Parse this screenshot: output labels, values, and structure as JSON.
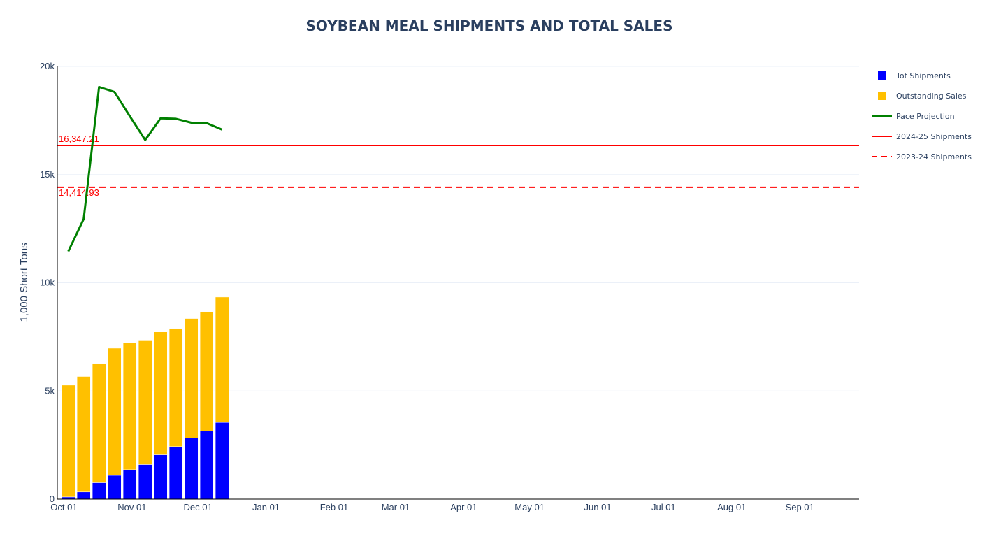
{
  "chart_data": {
    "type": "bar",
    "title": "SOYBEAN MEAL SHIPMENTS AND TOTAL SALES",
    "xlabel": "",
    "ylabel": "1,000 Short Tons",
    "barmode": "stack",
    "xlim": [
      "2024-09-28",
      "2025-09-28"
    ],
    "ylim": [
      0,
      20000
    ],
    "x_tick_labels": [
      "Oct 01",
      "Nov 01",
      "Dec 01",
      "Jan 01",
      "Feb 01",
      "Mar 01",
      "Apr 01",
      "May 01",
      "Jun 01",
      "Jul 01",
      "Aug 01",
      "Sep 01"
    ],
    "x_tick_dates": [
      "2024-10-01",
      "2024-11-01",
      "2024-12-01",
      "2025-01-01",
      "2025-02-01",
      "2025-03-01",
      "2025-04-01",
      "2025-05-01",
      "2025-06-01",
      "2025-07-01",
      "2025-08-01",
      "2025-09-01"
    ],
    "y_tick_labels": [
      "0",
      "5k",
      "10k",
      "15k",
      "20k"
    ],
    "y_ticks": [
      0,
      5000,
      10000,
      15000,
      20000
    ],
    "grid": true,
    "legend_position": "right",
    "dates": [
      "2024-10-03",
      "2024-10-10",
      "2024-10-17",
      "2024-10-24",
      "2024-10-31",
      "2024-11-07",
      "2024-11-14",
      "2024-11-21",
      "2024-11-28",
      "2024-12-05",
      "2024-12-12"
    ],
    "series": [
      {
        "name": "Tot Shipments",
        "kind": "bar",
        "color": "#0000ff",
        "values": [
          100,
          330,
          760,
          1100,
          1360,
          1600,
          2050,
          2430,
          2820,
          3150,
          3550
        ]
      },
      {
        "name": "Outstanding Sales",
        "kind": "bar",
        "color": "#ffc000",
        "values": [
          5170,
          5340,
          5510,
          5880,
          5860,
          5720,
          5680,
          5460,
          5530,
          5510,
          5790
        ]
      },
      {
        "name": "Pace Projection",
        "kind": "line",
        "color": "#008000",
        "values": [
          11450,
          12950,
          19050,
          18820,
          17700,
          16600,
          17600,
          17580,
          17400,
          17380,
          17080
        ]
      }
    ],
    "reference_lines": [
      {
        "name": "2024-25 Shipments",
        "value": 16347.21,
        "label": "16,347.21",
        "color": "#ff0000",
        "dash": "solid"
      },
      {
        "name": "2023-24 Shipments",
        "value": 14414.93,
        "label": "14,414.93",
        "color": "#ff0000",
        "dash": "dash"
      }
    ]
  }
}
